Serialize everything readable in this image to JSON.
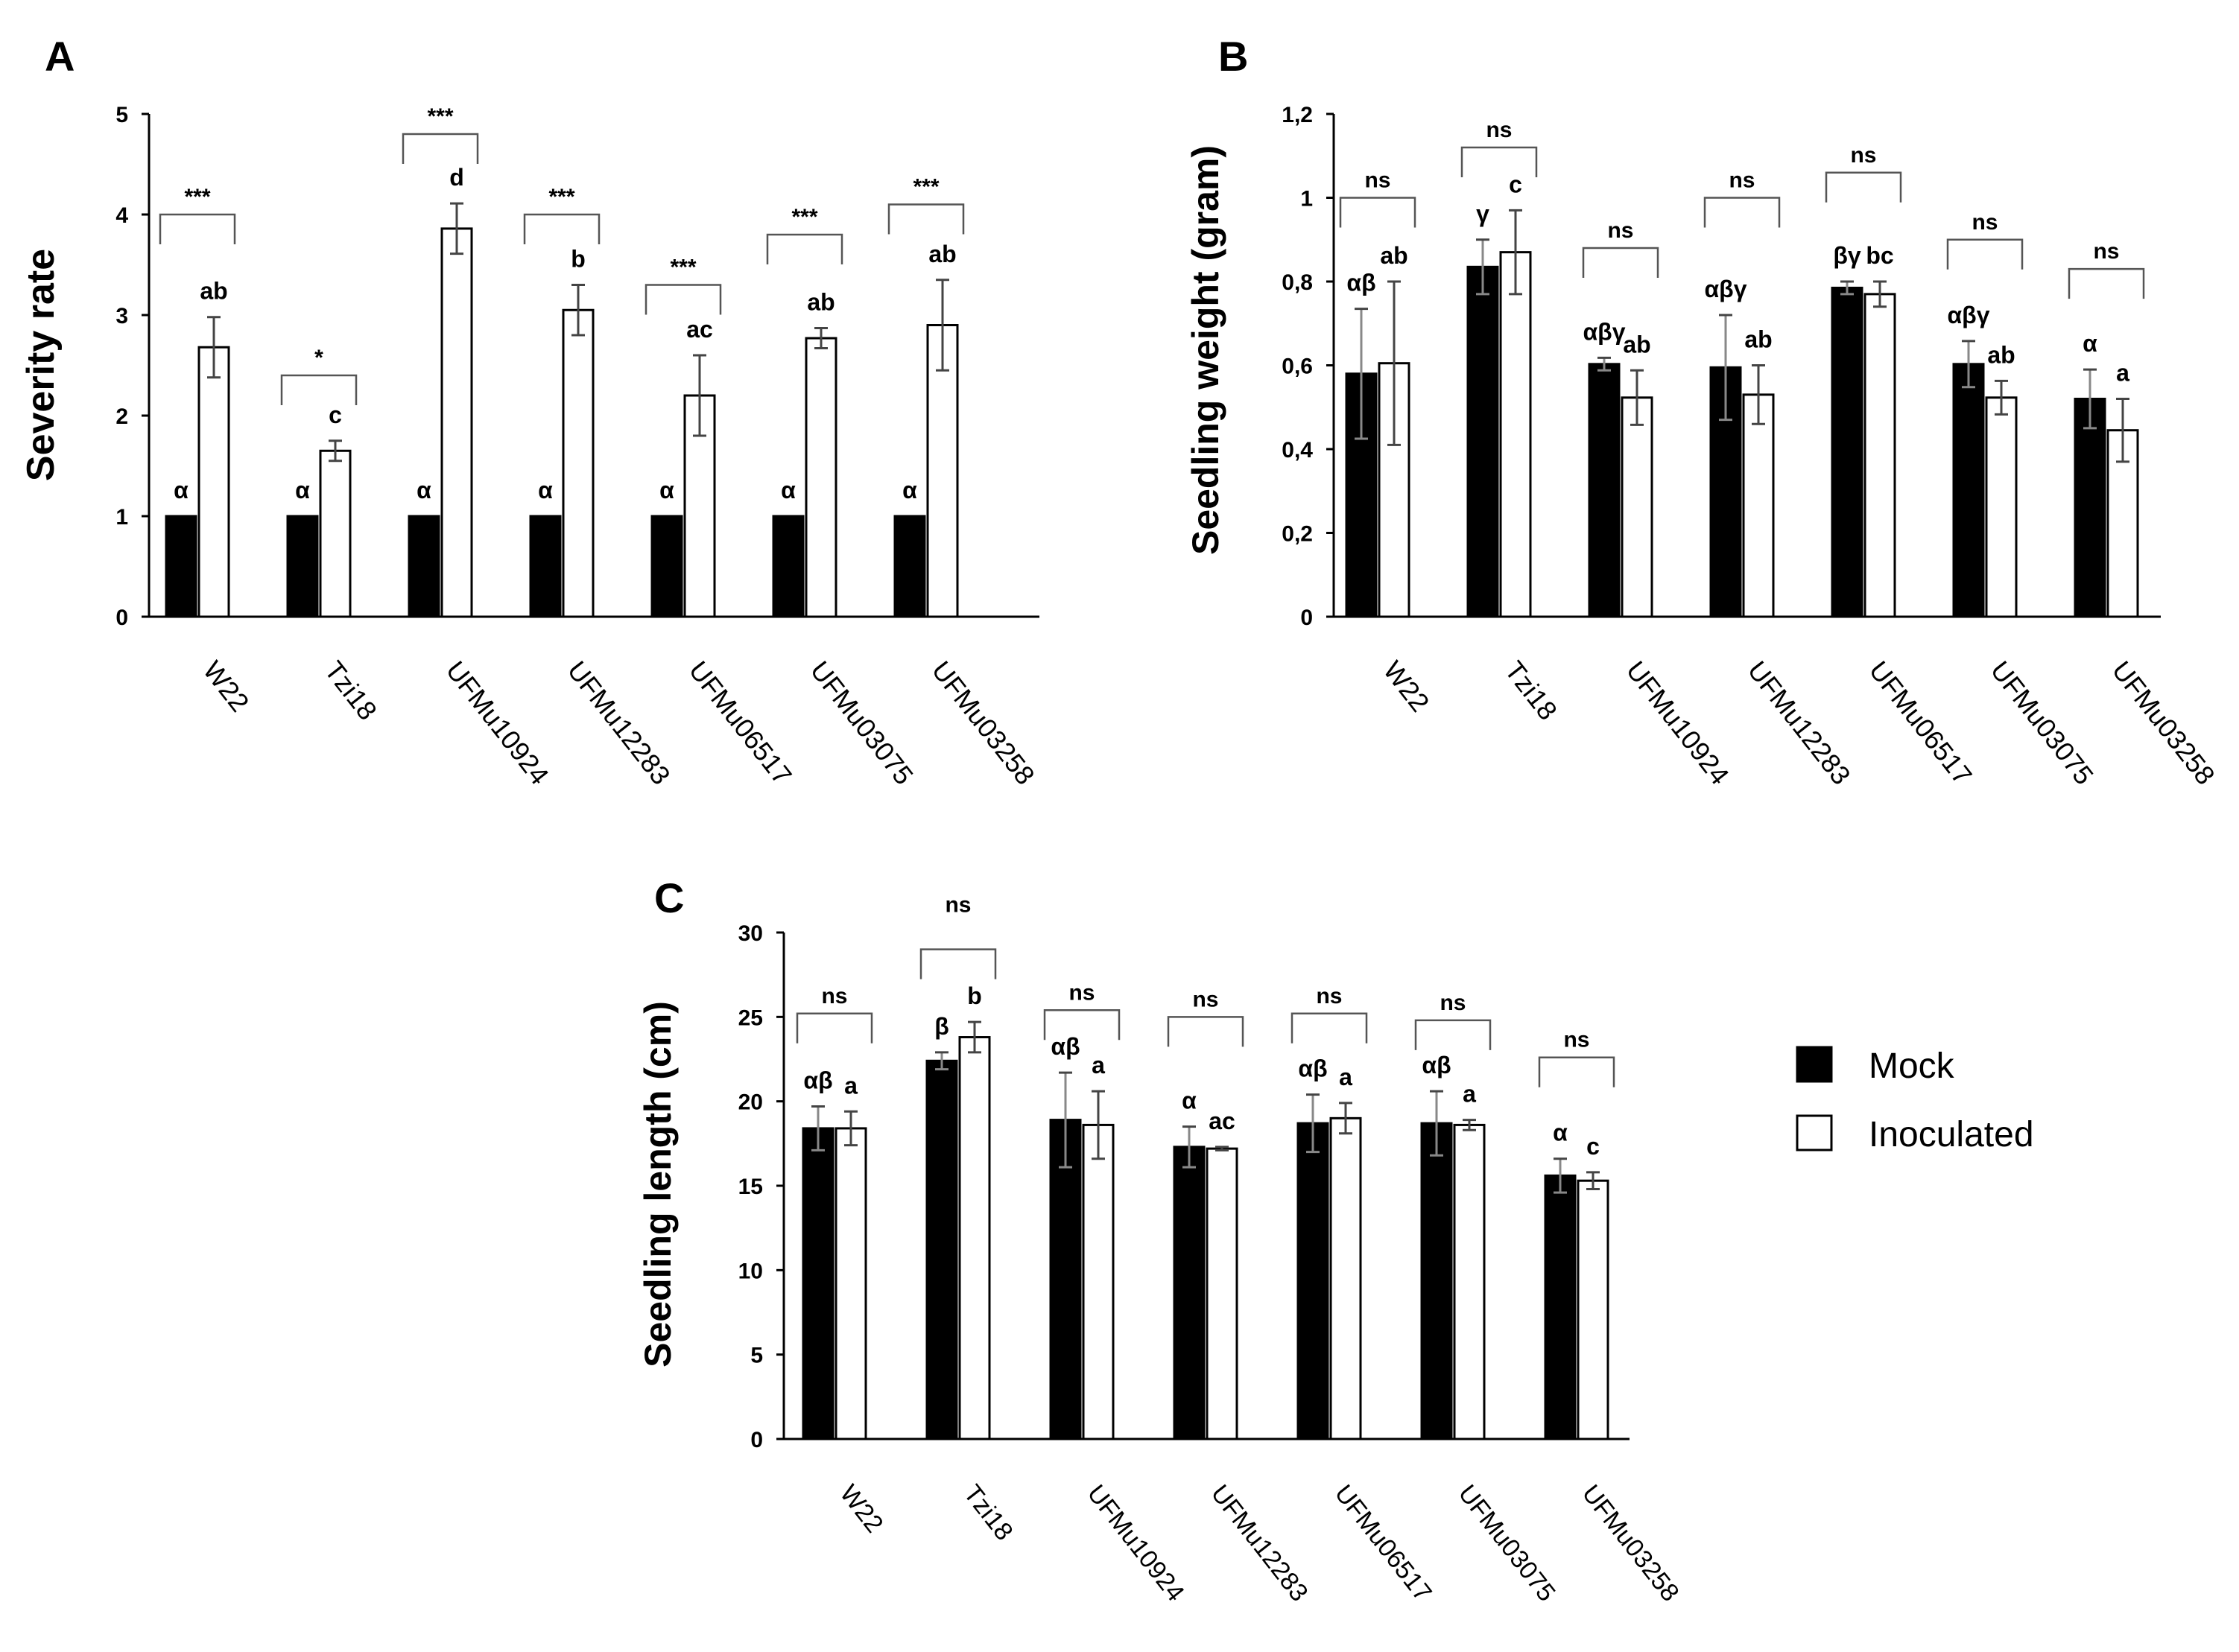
{
  "colors": {
    "mock": "#000000",
    "inoculated": "#ffffff",
    "axis": "#000000",
    "bracket": "#555555"
  },
  "legend": {
    "mock": "Mock",
    "inoculated": "Inoculated"
  },
  "chart_data": [
    {
      "id": "A",
      "panel_label": "A",
      "type": "bar",
      "title": "",
      "xlabel": "",
      "ylabel": "Severity rate",
      "ylim": [
        0,
        5
      ],
      "yticks": [
        "0",
        "1",
        "2",
        "3",
        "4",
        "5"
      ],
      "categories": [
        "W22",
        "Tzi18",
        "UFMu10924",
        "UFMu12283",
        "UFMu06517",
        "UFMu03075",
        "UFMu03258"
      ],
      "series": [
        {
          "name": "Mock",
          "values": [
            1,
            1,
            1,
            1,
            1,
            1,
            1
          ],
          "errors": [
            0,
            0,
            0,
            0,
            0,
            0,
            0
          ],
          "letters": [
            "α",
            "α",
            "α",
            "α",
            "α",
            "α",
            "α"
          ]
        },
        {
          "name": "Inoculated",
          "values": [
            2.68,
            1.65,
            3.86,
            3.05,
            2.2,
            2.77,
            2.9
          ],
          "errors": [
            0.3,
            0.1,
            0.25,
            0.25,
            0.4,
            0.1,
            0.45
          ],
          "letters": [
            "ab",
            "c",
            "d",
            "b",
            "ac",
            "ab",
            "ab"
          ]
        }
      ],
      "brackets": [
        {
          "label": "***",
          "value": 4.0
        },
        {
          "label": "*",
          "value": 2.4
        },
        {
          "label": "***",
          "value": 4.8
        },
        {
          "label": "***",
          "value": 4.0
        },
        {
          "label": "***",
          "value": 3.3
        },
        {
          "label": "***",
          "value": 3.8
        },
        {
          "label": "***",
          "value": 4.1
        }
      ]
    },
    {
      "id": "B",
      "panel_label": "B",
      "type": "bar",
      "title": "",
      "xlabel": "",
      "ylabel": "Seedling weight (gram)",
      "ylim": [
        0,
        1.2
      ],
      "yticks": [
        "0",
        "0,2",
        "0,4",
        "0,6",
        "0,8",
        "1",
        "1,2"
      ],
      "categories": [
        "W22",
        "Tzi18",
        "UFMu10924",
        "UFMu12283",
        "UFMu06517",
        "UFMu03075",
        "UFMu03258"
      ],
      "series": [
        {
          "name": "Mock",
          "values": [
            0.58,
            0.835,
            0.603,
            0.595,
            0.785,
            0.603,
            0.52
          ],
          "errors": [
            0.155,
            0.065,
            0.015,
            0.125,
            0.015,
            0.055,
            0.07
          ],
          "letters": [
            "αβ",
            "γ",
            "αβγ",
            "αβγ",
            "βγ",
            "αβγ",
            "α"
          ]
        },
        {
          "name": "Inoculated",
          "values": [
            0.605,
            0.87,
            0.523,
            0.53,
            0.77,
            0.523,
            0.445
          ],
          "errors": [
            0.195,
            0.1,
            0.065,
            0.07,
            0.03,
            0.04,
            0.075
          ],
          "letters": [
            "ab",
            "c",
            "ab",
            "ab",
            "bc",
            "ab",
            "a"
          ]
        }
      ],
      "brackets": [
        {
          "label": "ns",
          "value": 1.0
        },
        {
          "label": "ns",
          "value": 1.12
        },
        {
          "label": "ns",
          "value": 0.88
        },
        {
          "label": "ns",
          "value": 1.0
        },
        {
          "label": "ns",
          "value": 1.06
        },
        {
          "label": "ns",
          "value": 0.9
        },
        {
          "label": "ns",
          "value": 0.83
        }
      ]
    },
    {
      "id": "C",
      "panel_label": "C",
      "type": "bar",
      "title": "",
      "xlabel": "",
      "ylabel": "Seedling length (cm)",
      "ylim": [
        0,
        30
      ],
      "yticks": [
        "0",
        "5",
        "10",
        "15",
        "20",
        "25",
        "30"
      ],
      "categories": [
        "W22",
        "Tzi18",
        "UFMu10924",
        "UFMu12283",
        "UFMu06517",
        "UFMu03075",
        "UFMu03258"
      ],
      "series": [
        {
          "name": "Mock",
          "values": [
            18.4,
            22.4,
            18.9,
            17.3,
            18.7,
            18.7,
            15.6
          ],
          "errors": [
            1.3,
            0.5,
            2.8,
            1.2,
            1.7,
            1.9,
            1.0
          ],
          "letters": [
            "αβ",
            "β",
            "αβ",
            "α",
            "αβ",
            "αβ",
            "α"
          ]
        },
        {
          "name": "Inoculated",
          "values": [
            18.4,
            23.8,
            18.6,
            17.2,
            19.0,
            18.6,
            15.3
          ],
          "errors": [
            1.0,
            0.9,
            2.0,
            0.1,
            0.9,
            0.3,
            0.5
          ],
          "letters": [
            "a",
            "b",
            "a",
            "ac",
            "a",
            "a",
            "c"
          ]
        }
      ],
      "brackets": [
        {
          "label": "ns",
          "value": 25.2
        },
        {
          "label": "ns",
          "value": 29.0
        },
        {
          "label": "ns",
          "value": 25.4
        },
        {
          "label": "ns",
          "value": 25.0
        },
        {
          "label": "ns",
          "value": 25.2
        },
        {
          "label": "ns",
          "value": 24.8
        },
        {
          "label": "ns",
          "value": 22.6
        }
      ],
      "bracket_label_above": [
        false,
        true,
        false,
        false,
        false,
        false,
        false
      ]
    }
  ]
}
